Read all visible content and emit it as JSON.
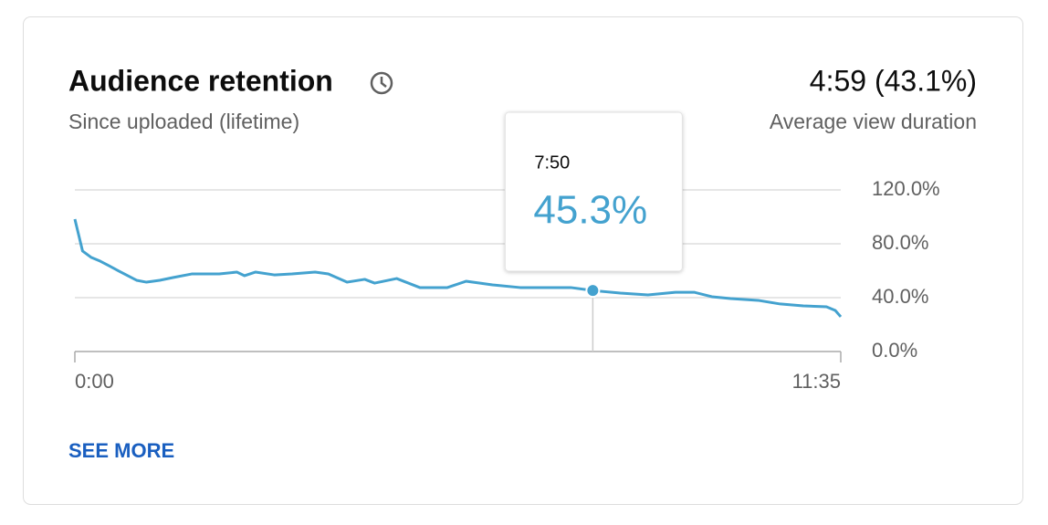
{
  "header": {
    "title": "Audience retention",
    "subtitle": "Since uploaded (lifetime)"
  },
  "summary": {
    "value": "4:59 (43.1%)",
    "label": "Average view duration"
  },
  "link": "SEE MORE",
  "chart_data": {
    "type": "line",
    "x": [
      0,
      7,
      15,
      23,
      31,
      40,
      48,
      56,
      65,
      77,
      89,
      106,
      131,
      147,
      154,
      164,
      181,
      197,
      218,
      230,
      247,
      263,
      272,
      292,
      313,
      338,
      355,
      379,
      404,
      429,
      450,
      470,
      495,
      520,
      545,
      562,
      578,
      595,
      620,
      640,
      661,
      682,
      690,
      695
    ],
    "series": [
      {
        "color": "#44a2cf",
        "values": [
          98.3,
          74.6,
          69.8,
          67.1,
          63.7,
          59.7,
          56.3,
          52.9,
          51.5,
          52.9,
          54.9,
          57.6,
          57.6,
          59,
          56.3,
          59,
          56.9,
          57.6,
          59,
          57.6,
          51.5,
          53.6,
          50.8,
          54.2,
          47.5,
          47.5,
          52.2,
          49.5,
          47.5,
          47.5,
          47.5,
          45.3,
          43.4,
          42,
          44,
          44,
          40.7,
          39.3,
          38,
          35.3,
          33.9,
          33.2,
          30.5,
          25.8
        ]
      }
    ],
    "xlim": [
      0,
      695
    ],
    "xticks": [
      {
        "value": 0,
        "label": "0:00"
      },
      {
        "value": 695,
        "label": "11:35"
      }
    ],
    "ylim": [
      0,
      120
    ],
    "yticks": [
      {
        "value": 0,
        "label": "0.0%"
      },
      {
        "value": 40,
        "label": "40.0%"
      },
      {
        "value": 80,
        "label": "80.0%"
      },
      {
        "value": 120,
        "label": "120.0%"
      }
    ],
    "grid": true,
    "tooltip": {
      "x": 470,
      "x_label": "7:50",
      "value": 45.3,
      "value_label": "45.3%"
    }
  }
}
